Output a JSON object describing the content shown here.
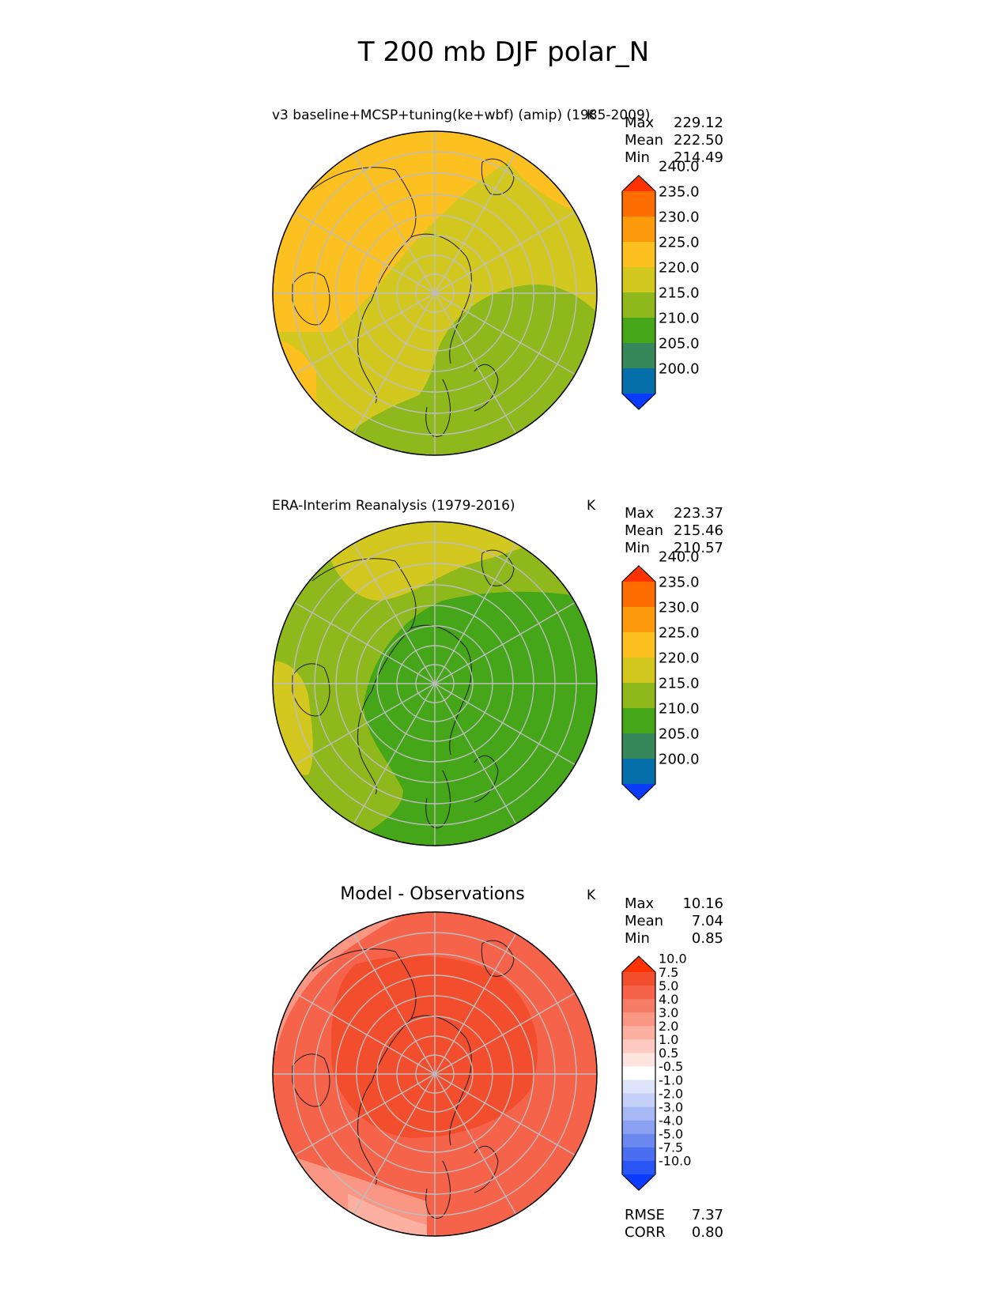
{
  "figure_title": "T 200 mb DJF polar_N",
  "chart_data": [
    {
      "type": "heatmap",
      "projection": "north-polar-stereographic",
      "title": "v3 baseline+MCSP+tuning(ke+wbf) (amip) (1985-2009)",
      "units": "K",
      "stats": [
        {
          "label": "Max",
          "value": "229.12"
        },
        {
          "label": "Mean",
          "value": "222.50"
        },
        {
          "label": "Min",
          "value": "214.49"
        }
      ],
      "colorbar": {
        "extend": "both",
        "levels": [
          195,
          200,
          205,
          210,
          215,
          220,
          225,
          230,
          235,
          240,
          245
        ],
        "tick_labels": [
          "200.0",
          "205.0",
          "210.0",
          "215.0",
          "220.0",
          "225.0",
          "230.0",
          "235.0",
          "240.0"
        ],
        "colors": [
          "#0a3cff",
          "#066ea8",
          "#36875a",
          "#44a618",
          "#8fb81c",
          "#d2c820",
          "#fcc021",
          "#fd9a0b",
          "#fe6c00",
          "#fe3300"
        ],
        "under_color": "#0a3cff",
        "over_color": "#fe3300"
      }
    },
    {
      "type": "heatmap",
      "projection": "north-polar-stereographic",
      "title": "ERA-Interim Reanalysis (1979-2016)",
      "units": "K",
      "stats": [
        {
          "label": "Max",
          "value": "223.37"
        },
        {
          "label": "Mean",
          "value": "215.46"
        },
        {
          "label": "Min",
          "value": "210.57"
        }
      ],
      "colorbar": {
        "extend": "both",
        "levels": [
          195,
          200,
          205,
          210,
          215,
          220,
          225,
          230,
          235,
          240,
          245
        ],
        "tick_labels": [
          "200.0",
          "205.0",
          "210.0",
          "215.0",
          "220.0",
          "225.0",
          "230.0",
          "235.0",
          "240.0"
        ],
        "colors": [
          "#0a3cff",
          "#066ea8",
          "#36875a",
          "#44a618",
          "#8fb81c",
          "#d2c820",
          "#fcc021",
          "#fd9a0b",
          "#fe6c00",
          "#fe3300"
        ],
        "under_color": "#0a3cff",
        "over_color": "#fe3300"
      }
    },
    {
      "type": "heatmap",
      "projection": "north-polar-stereographic",
      "title": "Model - Observations",
      "units": "K",
      "stats": [
        {
          "label": "Max",
          "value": "10.16"
        },
        {
          "label": "Mean",
          "value": "7.04"
        },
        {
          "label": "Min",
          "value": "0.85"
        }
      ],
      "footer_stats": [
        {
          "label": "RMSE",
          "value": "7.37"
        },
        {
          "label": "CORR",
          "value": "0.80"
        }
      ],
      "colorbar": {
        "extend": "both",
        "levels": [
          -12,
          -10,
          -7.5,
          -5,
          -4,
          -3,
          -2,
          -1,
          -0.5,
          0.5,
          1,
          2,
          3,
          4,
          5,
          7.5,
          10,
          12
        ],
        "tick_labels": [
          "-10.0",
          "-7.5",
          "-5.0",
          "-4.0",
          "-3.0",
          "-2.0",
          "-1.0",
          "-0.5",
          "0.5",
          "1.0",
          "2.0",
          "3.0",
          "4.0",
          "5.0",
          "7.5",
          "10.0"
        ],
        "colors": [
          "#0a3cff",
          "#2a55f5",
          "#4a6ef0",
          "#6a88ee",
          "#8aa0f0",
          "#a8b8f4",
          "#c4d0f8",
          "#dde4fa",
          "#ffffff",
          "#fde4de",
          "#fccac0",
          "#fbb0a2",
          "#f99684",
          "#f77c66",
          "#f5634a",
          "#f24e2e",
          "#fe3300"
        ],
        "under_color": "#0a3cff",
        "over_color": "#fe3300"
      }
    }
  ]
}
